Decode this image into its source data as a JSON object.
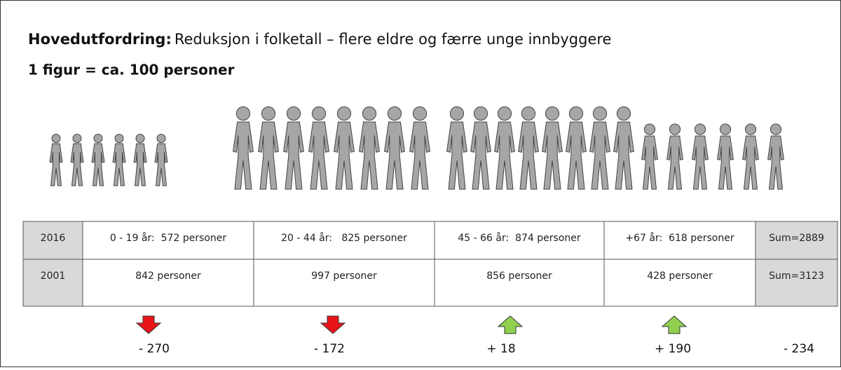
{
  "header": {
    "title_bold": "Hovedutfordring:",
    "title": "Reduksjon i folketall – flere eldre og færre unge innbyggere",
    "subtitle": "1 figur = ca. 100 personer"
  },
  "table": {
    "rows": [
      [
        "2016",
        "0 - 19 år:  572 personer",
        "20 - 44 år:   825 personer",
        "45 - 66 år:  874 personer",
        "+67 år:  618 personer",
        "Sum=2889"
      ],
      [
        "2001",
        "842 personer",
        "997 personer",
        "856 personer",
        "428 personer",
        "Sum=3123"
      ]
    ]
  },
  "changes": [
    "- 270",
    "- 172",
    "+ 18",
    "+ 190",
    "- 234"
  ]
}
